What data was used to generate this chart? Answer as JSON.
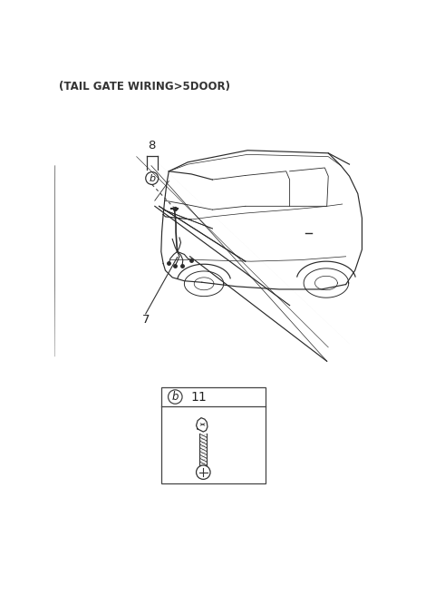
{
  "title": "(TAIL GATE WIRING>5DOOR)",
  "title_fontsize": 8.5,
  "title_color": "#333333",
  "bg_color": "#ffffff",
  "label_8": "8",
  "label_7": "7",
  "label_11": "11",
  "label_b": "b",
  "fig_width": 4.8,
  "fig_height": 6.56,
  "dpi": 100,
  "car_color": "#2a2a2a",
  "car_lw": 0.85
}
